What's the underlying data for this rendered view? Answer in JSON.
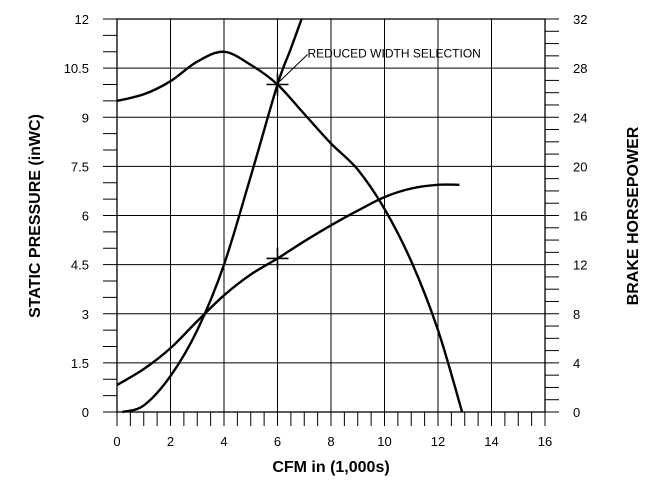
{
  "chart_data": {
    "type": "line",
    "xlabel": "CFM in (1,000s)",
    "ylabel": "STATIC PRESSURE (inWC)",
    "y2label": "BRAKE HORSEPOWER",
    "xlim": [
      0,
      16
    ],
    "ylim": [
      0,
      12
    ],
    "y2lim": [
      0,
      32
    ],
    "x_ticks": [
      "0",
      "2",
      "4",
      "6",
      "8",
      "10",
      "12",
      "14",
      "16"
    ],
    "y_ticks": [
      "0",
      "1.5",
      "3",
      "4.5",
      "6",
      "7.5",
      "9",
      "10.5",
      "12"
    ],
    "y2_ticks": [
      "0",
      "4",
      "8",
      "12",
      "16",
      "20",
      "24",
      "28",
      "32"
    ],
    "grid": true,
    "series": [
      {
        "axis": "left",
        "x": [
          0,
          1,
          2,
          3,
          4,
          5,
          6,
          7,
          8,
          9,
          10,
          11,
          12,
          12.9
        ],
        "y": [
          9.5,
          9.7,
          10.1,
          10.7,
          11.0,
          10.6,
          10.0,
          9.1,
          8.2,
          7.4,
          6.2,
          4.6,
          2.5,
          0
        ]
      },
      {
        "axis": "left",
        "x": [
          0.2,
          1,
          2,
          3,
          4,
          5,
          6,
          6.5,
          6.9
        ],
        "y": [
          0,
          0.2,
          1.1,
          2.5,
          4.5,
          7.2,
          10.0,
          11.1,
          12.0
        ]
      },
      {
        "axis": "right",
        "x": [
          0,
          1,
          2,
          3,
          4,
          5,
          6,
          7,
          8,
          9,
          10,
          11,
          12,
          12.8
        ],
        "y": [
          2.2,
          3.5,
          5.2,
          7.4,
          9.5,
          11.2,
          12.5,
          13.9,
          15.2,
          16.4,
          17.5,
          18.2,
          18.5,
          18.5
        ]
      }
    ],
    "markers": [
      {
        "x": 6,
        "y": 10.0,
        "axis": "left"
      },
      {
        "x": 6,
        "y": 12.5,
        "axis": "right"
      }
    ],
    "annotations": [
      {
        "text": "REDUCED WIDTH SELECTION",
        "x": 6,
        "y": 10.0
      }
    ]
  }
}
